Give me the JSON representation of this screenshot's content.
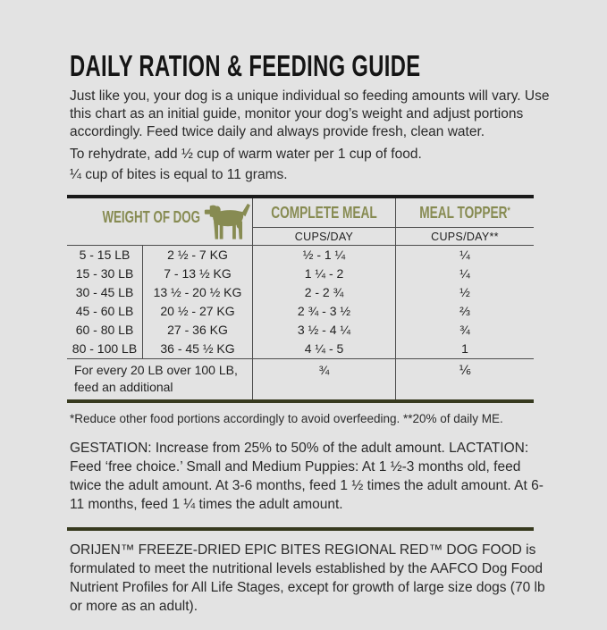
{
  "page": {
    "title": "DAILY RATION & FEEDING GUIDE",
    "intro": "Just like you, your dog is a unique individual so feeding amounts will vary. Use this chart as an initial guide, monitor your dog’s weight and adjust portions accordingly. Feed twice daily and always provide fresh, clean water.",
    "rehydrate": "To rehydrate, add ½ cup of warm water per 1 cup of food.",
    "bites_note": "¼ cup of bites is equal to 11 grams."
  },
  "table": {
    "headers": {
      "weight": "WEIGHT OF DOG",
      "complete_meal": "COMPLETE MEAL",
      "meal_topper": "MEAL TOPPER",
      "meal_topper_sup": "*",
      "complete_meal_sub": "CUPS/DAY",
      "meal_topper_sub": "CUPS/DAY**"
    },
    "dog_icon": "dog-silhouette-icon",
    "rows": [
      {
        "lb": "5 - 15 LB",
        "kg": "2 ½ - 7 KG",
        "meal": "½ - 1 ¼",
        "topper": "¼"
      },
      {
        "lb": "15 - 30 LB",
        "kg": "7 - 13 ½ KG",
        "meal": "1 ¼ - 2",
        "topper": "¼"
      },
      {
        "lb": "30 - 45 LB",
        "kg": "13 ½ - 20 ½ KG",
        "meal": "2 - 2 ¾",
        "topper": "½"
      },
      {
        "lb": "45 - 60 LB",
        "kg": "20 ½ - 27 KG",
        "meal": "2 ¾ - 3 ½",
        "topper": "⅔"
      },
      {
        "lb": "60 - 80 LB",
        "kg": "27 - 36 KG",
        "meal": "3 ½ - 4 ¼",
        "topper": "¾"
      },
      {
        "lb": "80 - 100 LB",
        "kg": "36 - 45 ½ KG",
        "meal": "4 ¼ - 5",
        "topper": "1"
      }
    ],
    "extra_row": {
      "label": "For every 20 LB over 100 LB, feed an additional",
      "meal": "¾",
      "topper": "⅙"
    }
  },
  "notes": {
    "footnote": "*Reduce other food portions accordingly to avoid overfeeding. **20% of daily ME.",
    "gestation": "GESTATION: Increase from 25% to 50% of the adult amount. LACTATION: Feed ‘free choice.’ Small and Medium Puppies: At 1 ½-3 months old, feed twice the adult amount. At 3-6 months, feed 1 ½ times the adult amount. At 6-11 months, feed 1 ¼ times the adult amount.",
    "aafco": "ORIJEN™ FREEZE-DRIED EPIC BITES REGIONAL RED™ DOG FOOD is formulated to meet the nutritional levels established by the AAFCO Dog Food Nutrient Profiles for All Life Stages, except for growth of large size dogs (70 lb or more as an adult)."
  },
  "colors": {
    "background": "#e3e3e3",
    "text": "#262626",
    "olive_accent": "#878b52",
    "dark_olive_rule": "#373a1f",
    "table_top_border": "#1a1a1a",
    "thin_line": "#4d4d4d"
  }
}
